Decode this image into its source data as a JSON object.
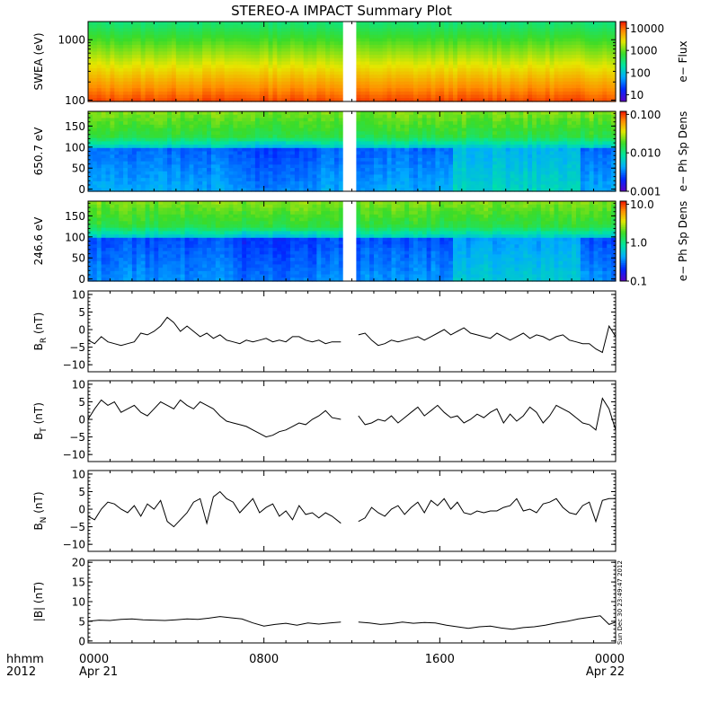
{
  "chart_data": {
    "type": "line",
    "title": "STEREO-A IMPACT Summary Plot",
    "gap": [
      11.6,
      12.2
    ],
    "x_axis": {
      "range_hours": [
        0,
        24
      ],
      "ticks": [
        {
          "hour": 0,
          "label": "0000",
          "date": "Apr 21"
        },
        {
          "hour": 8,
          "label": "0800",
          "date": ""
        },
        {
          "hour": 16,
          "label": "1600",
          "date": ""
        },
        {
          "hour": 24,
          "label": "0000",
          "date": "Apr 22"
        }
      ],
      "label_hhmm": "hhmm",
      "label_year": "2012"
    },
    "panels": [
      {
        "id": "swea",
        "kind": "spectrogram",
        "ylabel": "SWEA (eV)",
        "ylog": true,
        "yrange": [
          95,
          2000
        ],
        "yticks": [
          100,
          1000
        ],
        "yticklabels": [
          "100",
          "1000"
        ],
        "colorbar": {
          "label": "e− Flux",
          "ticks": [
            10,
            100,
            1000,
            10000
          ],
          "ticklabels": [
            "10",
            "100",
            "1000",
            "10000"
          ],
          "range": [
            5,
            20000
          ],
          "log": true
        }
      },
      {
        "id": "pad650",
        "kind": "spectrogram",
        "ylabel": "650.7 eV",
        "ylog": false,
        "yrange": [
          -5,
          185
        ],
        "yticks": [
          0,
          50,
          100,
          150
        ],
        "yticklabels": [
          "0",
          "50",
          "100",
          "150"
        ],
        "colorbar": {
          "label": "e− Ph Sp Dens",
          "ticks": [
            0.001,
            0.01,
            0.1
          ],
          "ticklabels": [
            "0.001",
            "0.010",
            "0.100"
          ],
          "range": [
            0.001,
            0.12
          ],
          "log": true
        }
      },
      {
        "id": "pad246",
        "kind": "spectrogram",
        "ylabel": "246.6 eV",
        "ylog": false,
        "yrange": [
          -5,
          185
        ],
        "yticks": [
          0,
          50,
          100,
          150
        ],
        "yticklabels": [
          "0",
          "50",
          "100",
          "150"
        ],
        "colorbar": {
          "label": "e− Ph Sp Dens",
          "ticks": [
            0.1,
            1,
            10
          ],
          "ticklabels": [
            "0.1",
            "1.0",
            "10.0"
          ],
          "range": [
            0.1,
            12
          ],
          "log": true
        }
      },
      {
        "id": "br",
        "kind": "line",
        "ylabel": "B",
        "ysub": "R",
        "yunit": " (nT)",
        "yrange": [
          -12,
          11
        ],
        "yticks": [
          -10,
          -5,
          0,
          5,
          10
        ],
        "yticklabels": [
          "−10",
          "−5",
          "0",
          "5",
          "10"
        ],
        "x": [
          0,
          0.3,
          0.6,
          0.9,
          1.2,
          1.5,
          1.8,
          2.1,
          2.4,
          2.7,
          3.0,
          3.3,
          3.6,
          3.9,
          4.2,
          4.5,
          4.8,
          5.1,
          5.4,
          5.7,
          6.0,
          6.3,
          6.6,
          6.9,
          7.2,
          7.5,
          7.8,
          8.1,
          8.4,
          8.7,
          9.0,
          9.3,
          9.6,
          9.9,
          10.2,
          10.5,
          10.8,
          11.1,
          11.5,
          12.3,
          12.6,
          12.9,
          13.2,
          13.5,
          13.8,
          14.1,
          14.4,
          14.7,
          15.0,
          15.3,
          15.6,
          15.9,
          16.2,
          16.5,
          16.8,
          17.1,
          17.4,
          17.7,
          18.0,
          18.3,
          18.6,
          18.9,
          19.2,
          19.5,
          19.8,
          20.1,
          20.4,
          20.7,
          21.0,
          21.3,
          21.6,
          21.9,
          22.2,
          22.5,
          22.8,
          23.1,
          23.4,
          23.7,
          24.0
        ],
        "y": [
          -3,
          -4,
          -2,
          -3.5,
          -4,
          -4.5,
          -4,
          -3.5,
          -1,
          -1.5,
          -0.5,
          1,
          3.5,
          2,
          -0.5,
          1,
          -0.5,
          -2,
          -1,
          -2.5,
          -1.5,
          -3,
          -3.5,
          -4,
          -3,
          -3.5,
          -3,
          -2.5,
          -3.5,
          -3,
          -3.5,
          -2,
          -2,
          -3,
          -3.5,
          -3,
          -4,
          -3.5,
          -3.5,
          -1.5,
          -1,
          -3,
          -4.5,
          -4,
          -3,
          -3.5,
          -3,
          -2.5,
          -2,
          -3,
          -2,
          -1,
          0,
          -1.5,
          -0.5,
          0.5,
          -1,
          -1.5,
          -2,
          -2.5,
          -1,
          -2,
          -3,
          -2,
          -1,
          -2.5,
          -1.5,
          -2,
          -3,
          -2,
          -1.5,
          -3,
          -3.5,
          -4,
          -4,
          -5.5,
          -6.5,
          1,
          -2
        ]
      },
      {
        "id": "bt",
        "kind": "line",
        "ylabel": "B",
        "ysub": "T",
        "yunit": " (nT)",
        "yrange": [
          -12,
          11
        ],
        "yticks": [
          -10,
          -5,
          0,
          5,
          10
        ],
        "yticklabels": [
          "−10",
          "−5",
          "0",
          "5",
          "10"
        ],
        "x": [
          0,
          0.3,
          0.6,
          0.9,
          1.2,
          1.5,
          1.8,
          2.1,
          2.4,
          2.7,
          3.0,
          3.3,
          3.6,
          3.9,
          4.2,
          4.5,
          4.8,
          5.1,
          5.4,
          5.7,
          6.0,
          6.3,
          6.6,
          6.9,
          7.2,
          7.5,
          7.8,
          8.1,
          8.4,
          8.7,
          9.0,
          9.3,
          9.6,
          9.9,
          10.2,
          10.5,
          10.8,
          11.1,
          11.5,
          12.3,
          12.6,
          12.9,
          13.2,
          13.5,
          13.8,
          14.1,
          14.4,
          14.7,
          15.0,
          15.3,
          15.6,
          15.9,
          16.2,
          16.5,
          16.8,
          17.1,
          17.4,
          17.7,
          18.0,
          18.3,
          18.6,
          18.9,
          19.2,
          19.5,
          19.8,
          20.1,
          20.4,
          20.7,
          21.0,
          21.3,
          21.6,
          21.9,
          22.2,
          22.5,
          22.8,
          23.1,
          23.4,
          23.7,
          24.0
        ],
        "y": [
          0,
          3,
          5.5,
          4,
          5,
          2,
          3,
          4,
          2,
          1,
          3,
          5,
          4,
          3,
          5.5,
          4,
          3,
          5,
          4,
          3,
          1,
          -0.5,
          -1,
          -1.5,
          -2,
          -3,
          -4,
          -5,
          -4.5,
          -3.5,
          -3,
          -2,
          -1,
          -1.5,
          0,
          1,
          2.5,
          0.5,
          0,
          1,
          -1.5,
          -1,
          0,
          -0.5,
          1,
          -1,
          0.5,
          2,
          3.5,
          1,
          2.5,
          4,
          2,
          0.5,
          1,
          -1,
          0,
          1.5,
          0.5,
          2,
          3,
          -1,
          1.5,
          -0.5,
          1,
          3.5,
          2,
          -1,
          1,
          4,
          3,
          2,
          0.5,
          -1,
          -1.5,
          -3,
          6,
          3,
          -3
        ]
      },
      {
        "id": "bn",
        "kind": "line",
        "ylabel": "B",
        "ysub": "N",
        "yunit": " (nT)",
        "yrange": [
          -12,
          11
        ],
        "yticks": [
          -10,
          -5,
          0,
          5,
          10
        ],
        "yticklabels": [
          "−10",
          "−5",
          "0",
          "5",
          "10"
        ],
        "x": [
          0,
          0.3,
          0.6,
          0.9,
          1.2,
          1.5,
          1.8,
          2.1,
          2.4,
          2.7,
          3.0,
          3.3,
          3.6,
          3.9,
          4.2,
          4.5,
          4.8,
          5.1,
          5.4,
          5.7,
          6.0,
          6.3,
          6.6,
          6.9,
          7.2,
          7.5,
          7.8,
          8.1,
          8.4,
          8.7,
          9.0,
          9.3,
          9.6,
          9.9,
          10.2,
          10.5,
          10.8,
          11.1,
          11.5,
          12.3,
          12.6,
          12.9,
          13.2,
          13.5,
          13.8,
          14.1,
          14.4,
          14.7,
          15.0,
          15.3,
          15.6,
          15.9,
          16.2,
          16.5,
          16.8,
          17.1,
          17.4,
          17.7,
          18.0,
          18.3,
          18.6,
          18.9,
          19.2,
          19.5,
          19.8,
          20.1,
          20.4,
          20.7,
          21.0,
          21.3,
          21.6,
          21.9,
          22.2,
          22.5,
          22.8,
          23.1,
          23.4,
          23.7,
          24.0
        ],
        "y": [
          -2,
          -3,
          0,
          2,
          1.5,
          0,
          -1,
          1,
          -2,
          1.5,
          0,
          2.5,
          -3.5,
          -5,
          -3,
          -1,
          2,
          3,
          -4,
          3.5,
          5,
          3,
          2,
          -1,
          1,
          3,
          -1,
          0.5,
          1.5,
          -2,
          -0.5,
          -3,
          1,
          -1.5,
          -1,
          -2.5,
          -1,
          -2,
          -4,
          -3.5,
          -2.5,
          0.5,
          -1,
          -2,
          0,
          1,
          -1.5,
          0.5,
          2,
          -1,
          2.5,
          1,
          3,
          0,
          2,
          -1,
          -1.5,
          -0.5,
          -1,
          -0.5,
          -0.5,
          0.5,
          1,
          3,
          -0.5,
          0,
          -1,
          1.5,
          2,
          3,
          0.5,
          -1,
          -1.5,
          1,
          2,
          -3.5,
          2.5,
          3,
          3
        ]
      },
      {
        "id": "bmag",
        "kind": "line",
        "ylabel": "|B|",
        "ysub": "",
        "yunit": " (nT)",
        "yrange": [
          -0.5,
          20.5
        ],
        "yticks": [
          0,
          5,
          10,
          15,
          20
        ],
        "yticklabels": [
          "0",
          "5",
          "10",
          "15",
          "20"
        ],
        "x": [
          0,
          0.5,
          1.0,
          1.5,
          2.0,
          2.5,
          3.0,
          3.5,
          4.0,
          4.5,
          5.0,
          5.5,
          6.0,
          6.5,
          7.0,
          7.5,
          8.0,
          8.5,
          9.0,
          9.5,
          10.0,
          10.5,
          11.0,
          11.5,
          12.3,
          12.8,
          13.3,
          13.8,
          14.3,
          14.8,
          15.3,
          15.8,
          16.3,
          16.8,
          17.3,
          17.8,
          18.3,
          18.8,
          19.3,
          19.8,
          20.3,
          20.8,
          21.3,
          21.8,
          22.3,
          22.8,
          23.3,
          23.7,
          24.0
        ],
        "y": [
          5,
          5.3,
          5.2,
          5.5,
          5.6,
          5.4,
          5.3,
          5.2,
          5.4,
          5.6,
          5.5,
          5.8,
          6.2,
          5.9,
          5.6,
          4.6,
          3.8,
          4.2,
          4.5,
          4.0,
          4.6,
          4.3,
          4.6,
          4.8,
          4.8,
          4.6,
          4.2,
          4.4,
          4.8,
          4.5,
          4.7,
          4.6,
          4.0,
          3.6,
          3.2,
          3.6,
          3.8,
          3.3,
          3.0,
          3.4,
          3.6,
          4.0,
          4.6,
          5.0,
          5.6,
          6.0,
          6.4,
          4.2,
          4.8
        ]
      }
    ],
    "timestamp": "Sun Dec 30 23:49:47 2012"
  }
}
